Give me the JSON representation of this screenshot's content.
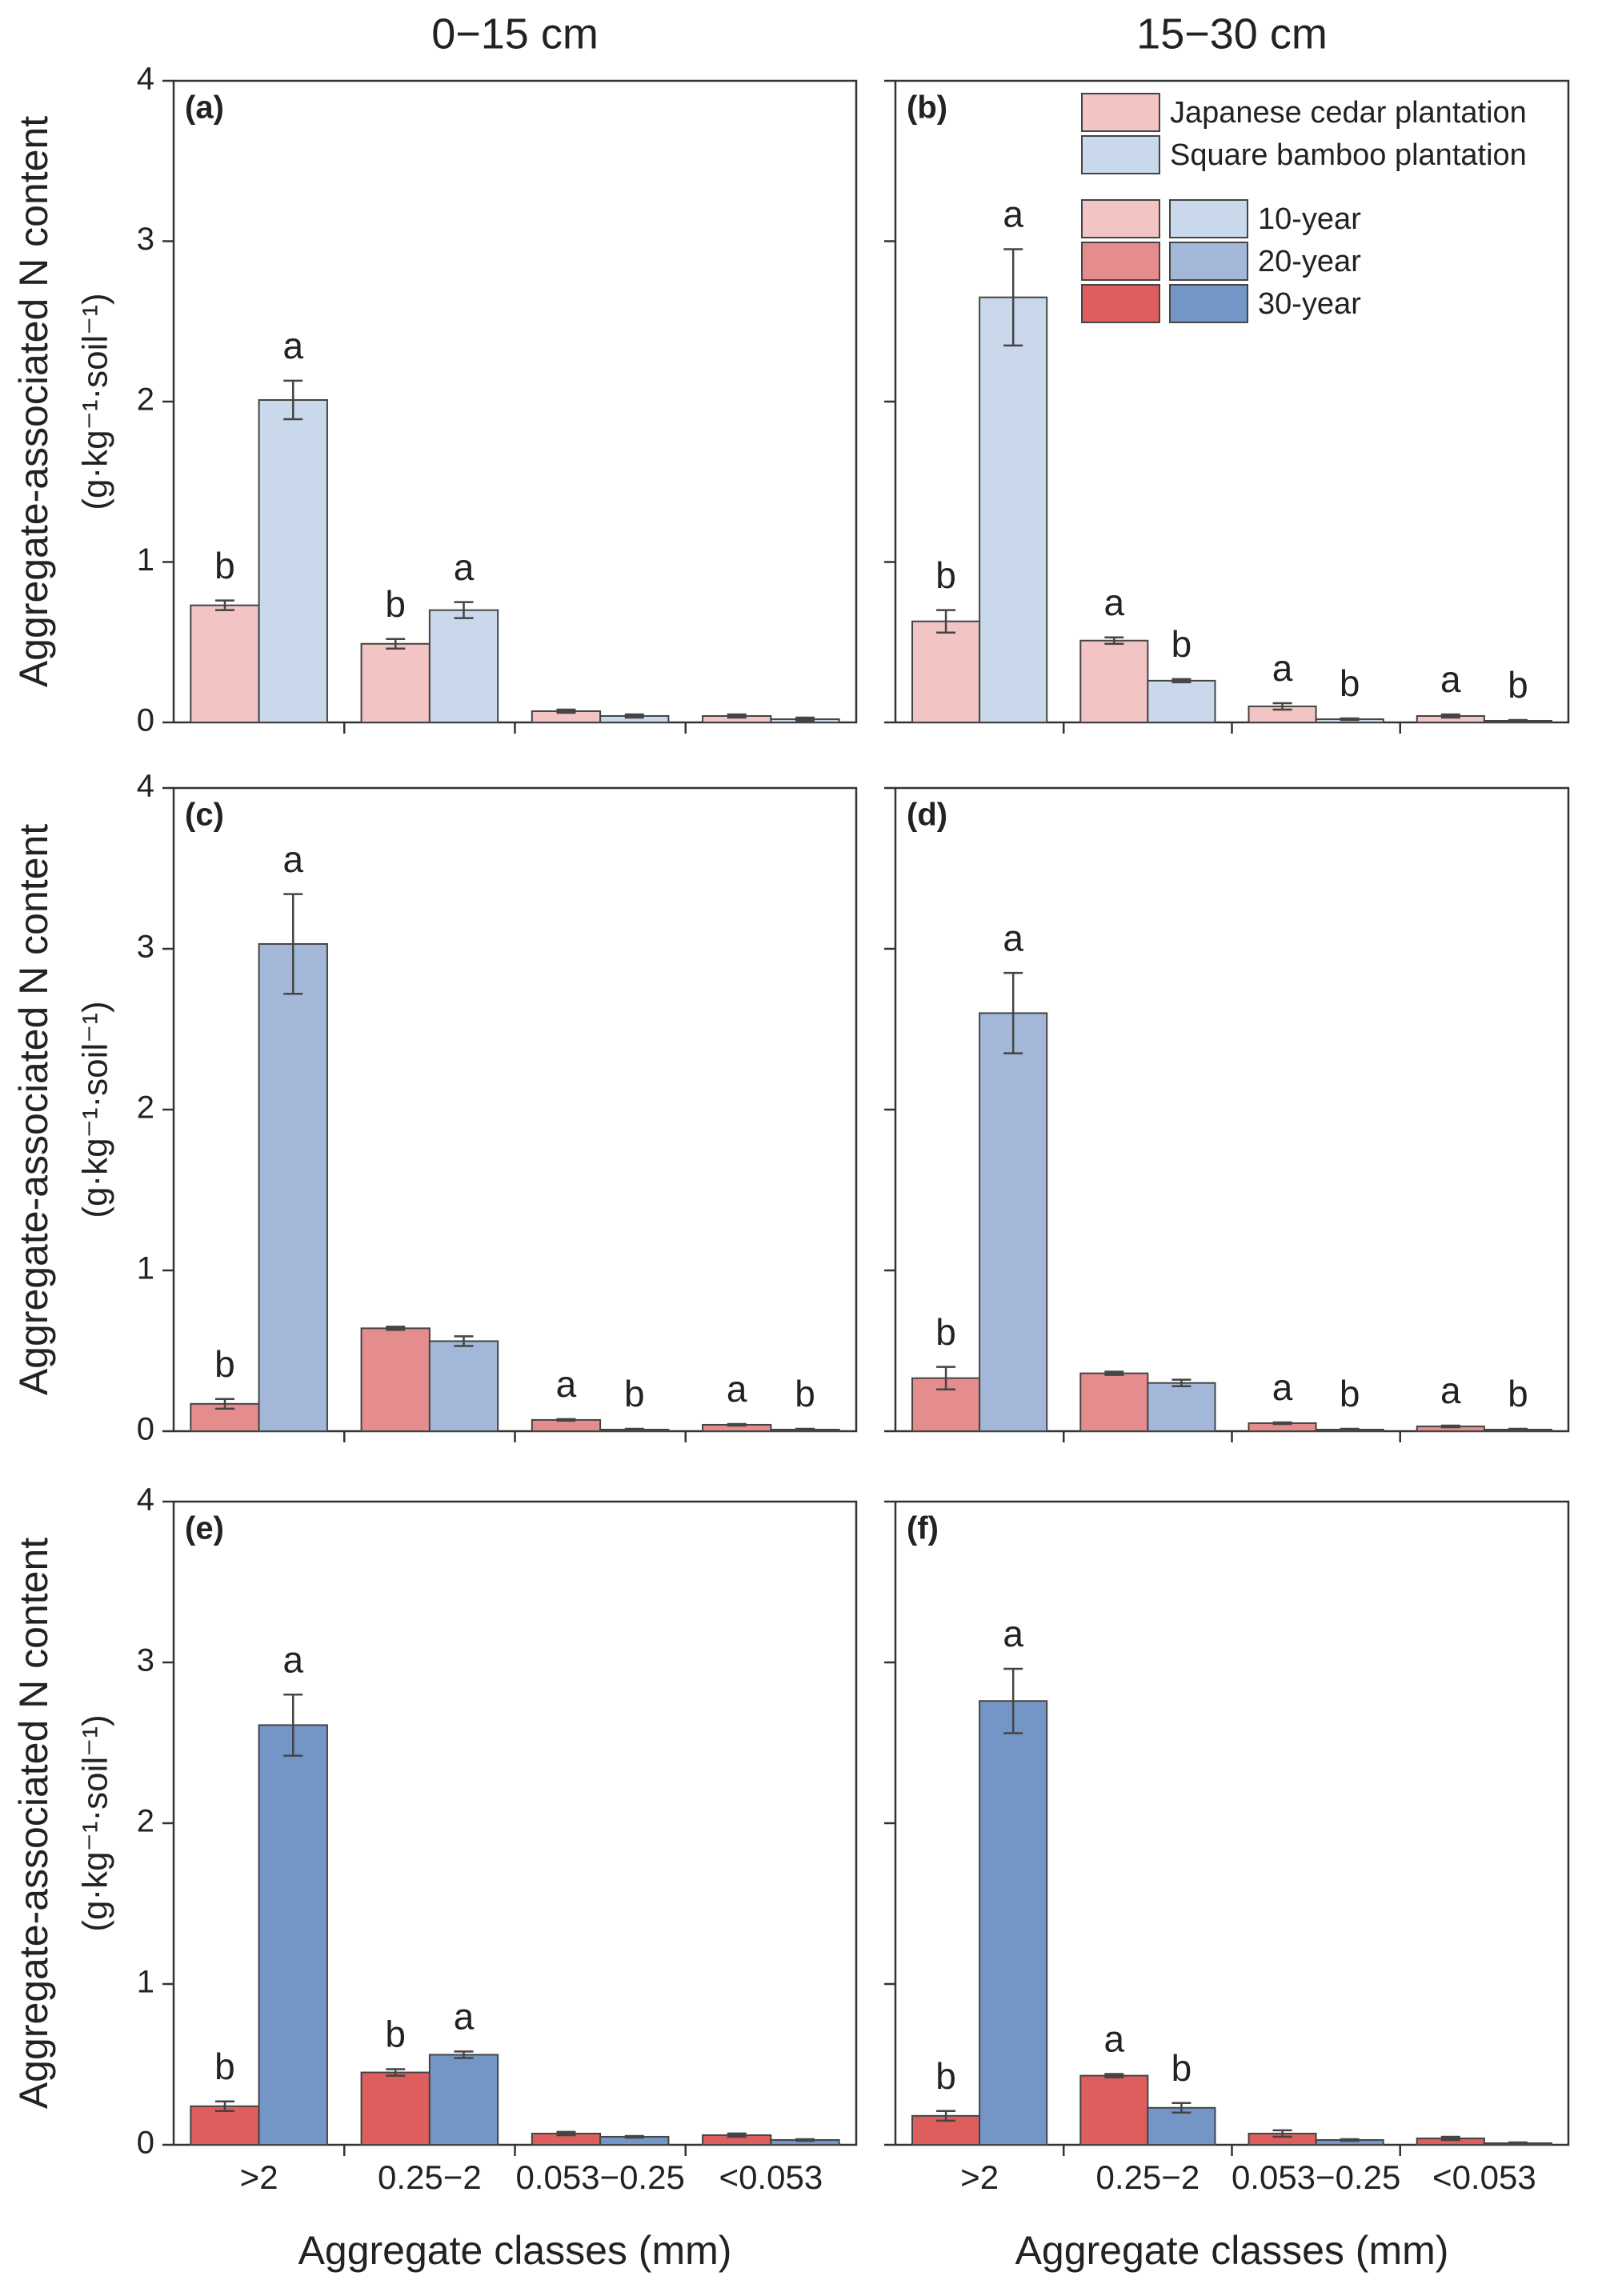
{
  "column_titles": [
    "0−15 cm",
    "15−30 cm"
  ],
  "y_label": [
    "Aggregate-associated N content",
    "(g·kg⁻¹·soil⁻¹)"
  ],
  "x_label": "Aggregate classes (mm)",
  "categories": [
    ">2",
    "0.25−2",
    "0.053−0.25",
    "<0.053"
  ],
  "legend": {
    "groups": [
      "Japanese cedar plantation",
      "Square bamboo plantation"
    ],
    "group_colors": [
      "#f2c4c3",
      "#c9d8ea"
    ],
    "ages": [
      {
        "label": "10-year",
        "colors": [
          "#f2c4c3",
          "#c9d8ea"
        ]
      },
      {
        "label": "20-year",
        "colors": [
          "#e58d8c",
          "#a3b8d9"
        ]
      },
      {
        "label": "30-year",
        "colors": [
          "#dd5e5d",
          "#7396c7"
        ]
      }
    ]
  },
  "chart_data": [
    {
      "type": "bar",
      "panel_label": "(a)",
      "ylim": [
        0,
        4
      ],
      "yticks": [
        0,
        1,
        2,
        3,
        4
      ],
      "series": [
        {
          "color": "#f2c4c3",
          "values": [
            0.73,
            0.49,
            0.07,
            0.04
          ],
          "errors": [
            0.03,
            0.03,
            0.01,
            0.01
          ],
          "letters": [
            "b",
            "b",
            null,
            null
          ]
        },
        {
          "color": "#c9d8ea",
          "values": [
            2.01,
            0.7,
            0.04,
            0.02
          ],
          "errors": [
            0.12,
            0.05,
            0.01,
            0.01
          ],
          "letters": [
            "a",
            "a",
            null,
            null
          ]
        }
      ]
    },
    {
      "type": "bar",
      "panel_label": "(b)",
      "ylim": [
        0,
        4
      ],
      "yticks": [
        0,
        1,
        2,
        3,
        4
      ],
      "series": [
        {
          "color": "#f2c4c3",
          "values": [
            0.63,
            0.51,
            0.1,
            0.04
          ],
          "errors": [
            0.07,
            0.02,
            0.02,
            0.01
          ],
          "letters": [
            "b",
            "a",
            "a",
            "a"
          ]
        },
        {
          "color": "#c9d8ea",
          "values": [
            2.65,
            0.26,
            0.02,
            0.01
          ],
          "errors": [
            0.3,
            0.01,
            0.005,
            0.005
          ],
          "letters": [
            "a",
            "b",
            "b",
            "b"
          ]
        }
      ]
    },
    {
      "type": "bar",
      "panel_label": "(c)",
      "ylim": [
        0,
        4
      ],
      "yticks": [
        0,
        1,
        2,
        3,
        4
      ],
      "series": [
        {
          "color": "#e58d8c",
          "values": [
            0.17,
            0.64,
            0.07,
            0.04
          ],
          "errors": [
            0.03,
            0.01,
            0.005,
            0.005
          ],
          "letters": [
            "b",
            null,
            "a",
            "a"
          ]
        },
        {
          "color": "#a3b8d9",
          "values": [
            3.03,
            0.56,
            0.01,
            0.01
          ],
          "errors": [
            0.31,
            0.03,
            0.005,
            0.005
          ],
          "letters": [
            "a",
            null,
            "b",
            "b"
          ]
        }
      ]
    },
    {
      "type": "bar",
      "panel_label": "(d)",
      "ylim": [
        0,
        4
      ],
      "yticks": [
        0,
        1,
        2,
        3,
        4
      ],
      "series": [
        {
          "color": "#e58d8c",
          "values": [
            0.33,
            0.36,
            0.05,
            0.03
          ],
          "errors": [
            0.07,
            0.01,
            0.005,
            0.005
          ],
          "letters": [
            "b",
            null,
            "a",
            "a"
          ]
        },
        {
          "color": "#a3b8d9",
          "values": [
            2.6,
            0.3,
            0.01,
            0.01
          ],
          "errors": [
            0.25,
            0.02,
            0.005,
            0.005
          ],
          "letters": [
            "a",
            null,
            "b",
            "b"
          ]
        }
      ]
    },
    {
      "type": "bar",
      "panel_label": "(e)",
      "ylim": [
        0,
        4
      ],
      "yticks": [
        0,
        1,
        2,
        3,
        4
      ],
      "series": [
        {
          "color": "#dd5e5d",
          "values": [
            0.24,
            0.45,
            0.07,
            0.06
          ],
          "errors": [
            0.03,
            0.02,
            0.01,
            0.01
          ],
          "letters": [
            "b",
            "b",
            null,
            null
          ]
        },
        {
          "color": "#7396c7",
          "values": [
            2.61,
            0.56,
            0.05,
            0.03
          ],
          "errors": [
            0.19,
            0.02,
            0.005,
            0.005
          ],
          "letters": [
            "a",
            "a",
            null,
            null
          ]
        }
      ]
    },
    {
      "type": "bar",
      "panel_label": "(f)",
      "ylim": [
        0,
        4
      ],
      "yticks": [
        0,
        1,
        2,
        3,
        4
      ],
      "series": [
        {
          "color": "#dd5e5d",
          "values": [
            0.18,
            0.43,
            0.07,
            0.04
          ],
          "errors": [
            0.03,
            0.01,
            0.02,
            0.01
          ],
          "letters": [
            "b",
            "a",
            null,
            null
          ]
        },
        {
          "color": "#7396c7",
          "values": [
            2.76,
            0.23,
            0.03,
            0.01
          ],
          "errors": [
            0.2,
            0.03,
            0.005,
            0.005
          ],
          "letters": [
            "a",
            "b",
            null,
            null
          ]
        }
      ]
    }
  ]
}
